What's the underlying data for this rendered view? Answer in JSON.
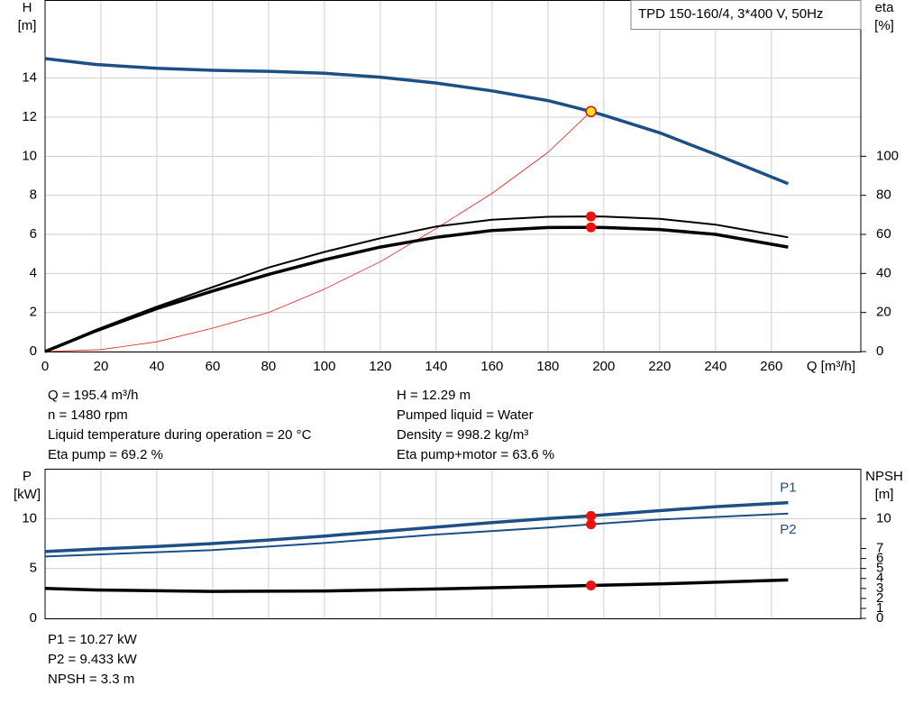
{
  "chart_data": [
    {
      "type": "line",
      "title": "TPD 150-160/4, 3*400 V, 50Hz",
      "ylabel": [
        "H",
        "[m]"
      ],
      "y2label": [
        "eta",
        "[%]"
      ],
      "xlabel": "Q [m³/h]",
      "xlim": [
        0,
        292
      ],
      "xticks": [
        0,
        20,
        40,
        60,
        80,
        100,
        120,
        140,
        160,
        180,
        200,
        220,
        240,
        260
      ],
      "ylim": [
        0,
        18
      ],
      "yticks": [
        0,
        2,
        4,
        6,
        8,
        10,
        12,
        14
      ],
      "y2lim": [
        0,
        180
      ],
      "y2ticks": [
        0,
        20,
        40,
        60,
        80,
        100
      ],
      "grid": true,
      "operating_x": 195.4,
      "series": [
        {
          "color": "#e02020",
          "style": "hair",
          "x": [
            0,
            20,
            40,
            60,
            80,
            100,
            120,
            140,
            160,
            180,
            195.4
          ],
          "values": [
            0,
            0.1,
            0.5,
            1.2,
            2.0,
            3.2,
            4.6,
            6.3,
            8.1,
            10.2,
            12.29
          ]
        },
        {
          "color": "#1c4f86",
          "style": "thick",
          "marker": "#f5e61a",
          "x": [
            0,
            18,
            40,
            60,
            80,
            100,
            120,
            140,
            160,
            180,
            195.4,
            200,
            220,
            240,
            266
          ],
          "values": [
            15.0,
            14.7,
            14.5,
            14.4,
            14.35,
            14.25,
            14.05,
            13.75,
            13.35,
            12.85,
            12.29,
            12.1,
            11.2,
            10.1,
            8.6
          ]
        },
        {
          "color": "#000000",
          "style": "thin",
          "axis": "y2",
          "marker": "#ee1111",
          "x": [
            0,
            18,
            40,
            60,
            80,
            100,
            120,
            140,
            160,
            180,
            195.4,
            200,
            220,
            240,
            266
          ],
          "values": [
            0,
            11,
            23,
            33,
            43,
            51,
            58,
            64,
            67.5,
            69,
            69.2,
            69.1,
            68,
            65,
            58.5
          ]
        },
        {
          "color": "#000000",
          "style": "thick",
          "axis": "y2",
          "marker": "#ee1111",
          "x": [
            0,
            18,
            40,
            60,
            80,
            100,
            120,
            140,
            160,
            180,
            195.4,
            200,
            220,
            240,
            266
          ],
          "values": [
            0,
            10.5,
            22,
            31,
            39.5,
            47,
            53.5,
            58.5,
            62,
            63.5,
            63.6,
            63.5,
            62.5,
            60,
            53.5
          ]
        }
      ],
      "info": [
        [
          "Q = 195.4 m³/h",
          "n = 1480 rpm",
          "Liquid temperature during operation = 20 °C",
          "Eta pump = 69.2 %"
        ],
        [
          "H = 12.29 m",
          "Pumped liquid = Water",
          "Density = 998.2 kg/m³",
          "Eta pump+motor = 63.6 %"
        ]
      ]
    },
    {
      "type": "line",
      "ylabel": [
        "P",
        "[kW]"
      ],
      "y2label": [
        "NPSH",
        "[m]"
      ],
      "xlim": [
        0,
        292
      ],
      "ylim": [
        0,
        15
      ],
      "yticks": [
        0,
        5,
        10
      ],
      "y2lim": [
        0,
        15
      ],
      "y2ticks": [
        0,
        1,
        2,
        3,
        4,
        5,
        6,
        7,
        10
      ],
      "grid": true,
      "operating_x": 195.4,
      "series": [
        {
          "name": "P1",
          "color": "#1c4f86",
          "style": "thick",
          "marker": "#ee1111",
          "x": [
            0,
            18,
            40,
            60,
            80,
            100,
            120,
            140,
            160,
            180,
            195.4,
            220,
            240,
            266
          ],
          "values": [
            6.7,
            6.95,
            7.2,
            7.5,
            7.85,
            8.25,
            8.7,
            9.15,
            9.6,
            10.0,
            10.27,
            10.8,
            11.2,
            11.6
          ]
        },
        {
          "name": "P2",
          "color": "#1c4f86",
          "style": "thin",
          "marker": "#ee1111",
          "x": [
            0,
            18,
            60,
            100,
            140,
            180,
            195.4,
            220,
            266
          ],
          "values": [
            6.2,
            6.4,
            6.85,
            7.55,
            8.4,
            9.1,
            9.433,
            9.9,
            10.5
          ]
        },
        {
          "color": "#000000",
          "style": "thick",
          "axis": "y2",
          "marker": "#ee1111",
          "x": [
            0,
            18,
            60,
            100,
            140,
            180,
            195.4,
            220,
            266
          ],
          "values": [
            3.0,
            2.85,
            2.7,
            2.75,
            2.95,
            3.2,
            3.3,
            3.45,
            3.85
          ]
        }
      ],
      "info": [
        [
          "P1 = 10.27 kW",
          "P2 = 9.433 kW",
          "NPSH = 3.3 m"
        ]
      ]
    }
  ]
}
